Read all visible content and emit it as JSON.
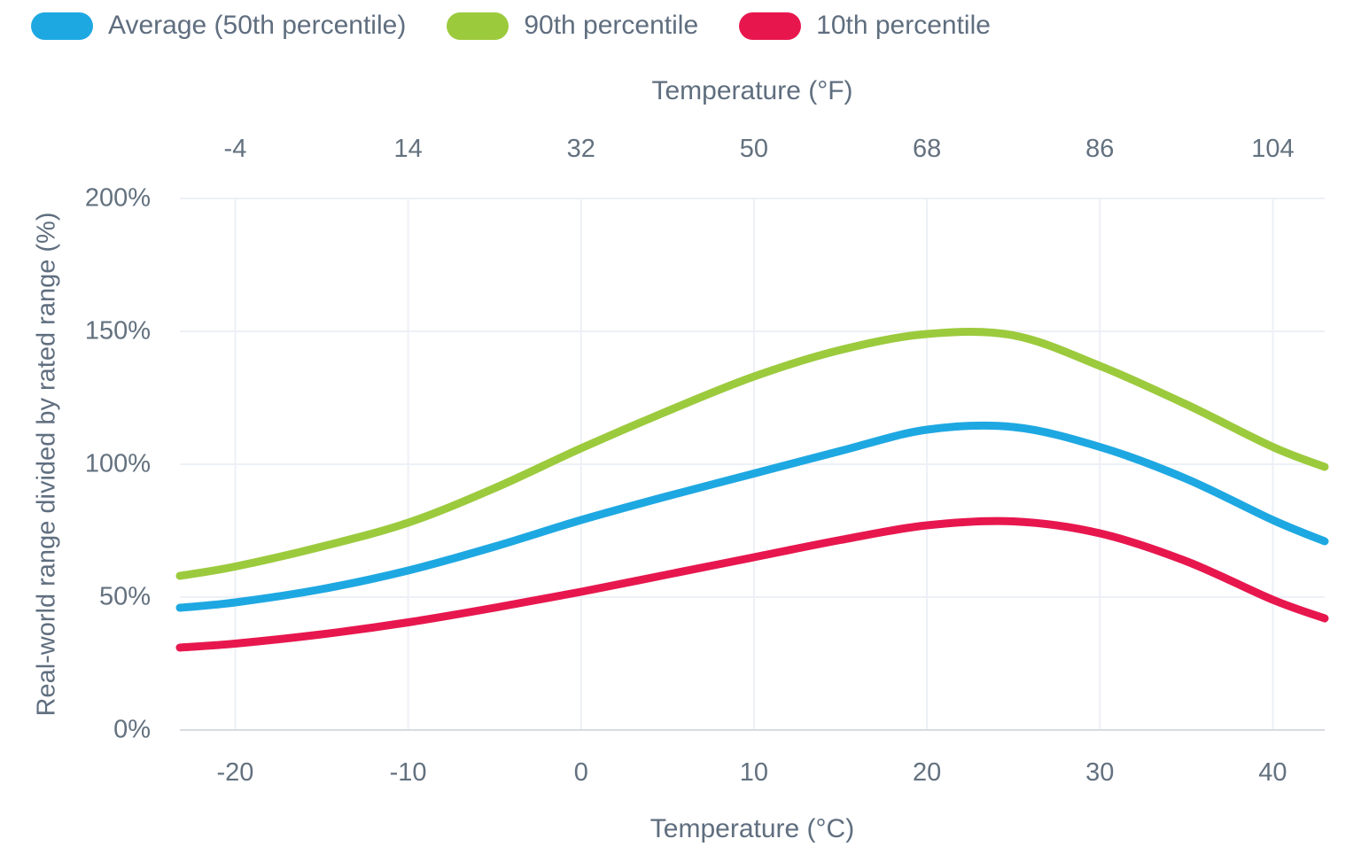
{
  "legend": {
    "items": [
      {
        "label": "Average (50th percentile)",
        "color": "#1ea8e2"
      },
      {
        "label": "90th percentile",
        "color": "#9cca3d"
      },
      {
        "label": "10th percentile",
        "color": "#e7174e"
      }
    ]
  },
  "colors": {
    "text": "#5f6e7f",
    "tick_text": "#63717f",
    "gridline": "#edf0f6",
    "axis_line": "#d8dce2",
    "background": "#ffffff"
  },
  "chart_data": {
    "type": "line",
    "title": "",
    "top_xlabel": "Temperature (°F)",
    "bottom_xlabel": "Temperature (°C)",
    "ylabel": "Real-world range divided by rated range (%)",
    "grid": true,
    "legend_position": "top-left",
    "x_axis_c": {
      "ticks": [
        -20,
        -10,
        0,
        10,
        20,
        30,
        40
      ],
      "tick_labels": [
        "-20",
        "-10",
        "0",
        "10",
        "20",
        "30",
        "40"
      ],
      "range": [
        -23.2,
        43
      ]
    },
    "x_axis_f": {
      "ticks": [
        -4,
        14,
        32,
        50,
        68,
        86,
        104
      ],
      "tick_labels": [
        "-4",
        "14",
        "32",
        "50",
        "68",
        "86",
        "104"
      ]
    },
    "y_axis": {
      "tick_values": [
        0,
        50,
        100,
        150,
        200
      ],
      "tick_labels": [
        "0%",
        "50%",
        "100%",
        "150%",
        "200%"
      ],
      "range": [
        0,
        200
      ]
    },
    "x": [
      -23.2,
      -20,
      -15,
      -10,
      -5,
      0,
      5,
      10,
      15,
      20,
      25,
      30,
      35,
      40,
      43
    ],
    "series": [
      {
        "name": "90th percentile",
        "color": "#9cca3d",
        "values": [
          58,
          61.5,
          69,
          78,
          91,
          106,
          120,
          133,
          143,
          149,
          148.5,
          137,
          122.5,
          106.5,
          99
        ]
      },
      {
        "name": "Average (50th percentile)",
        "color": "#1ea8e2",
        "values": [
          46,
          48,
          53,
          60,
          69,
          79,
          88,
          96.5,
          105,
          113,
          114,
          106.5,
          94.5,
          79,
          71
        ]
      },
      {
        "name": "10th percentile",
        "color": "#e7174e",
        "values": [
          31,
          32.5,
          36,
          40.5,
          46,
          52,
          58.5,
          65,
          71.5,
          77,
          78.5,
          74,
          63.5,
          49,
          42
        ]
      }
    ],
    "peaks_note": {
      "90th percentile": {
        "x_c": 22,
        "value_pct": 150
      },
      "Average (50th percentile)": {
        "x_c": 23,
        "value_pct": 114
      },
      "10th percentile": {
        "x_c": 24,
        "value_pct": 78.5
      }
    }
  }
}
